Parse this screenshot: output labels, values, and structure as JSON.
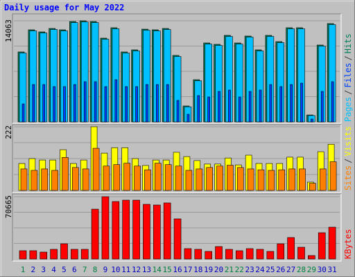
{
  "chart_data": [
    {
      "type": "bar",
      "title": "Daily usage for May 2022",
      "legend_separator": "/",
      "ylim": [
        0,
        14063
      ],
      "yticks": [
        14063
      ],
      "series": [
        {
          "name": "Pages",
          "color": "#00c0ff",
          "values": [
            9580,
            12660,
            12370,
            12850,
            12660,
            13810,
            13910,
            13810,
            11500,
            12950,
            9580,
            9870,
            12750,
            12660,
            12850,
            9100,
            2100,
            5720,
            10830,
            10640,
            11890,
            10830,
            11790,
            9870,
            11890,
            11020,
            12950,
            12950,
            880,
            10540,
            13530
          ]
        },
        {
          "name": "Files",
          "color": "#0040ff",
          "values": [
            2500,
            5200,
            5200,
            4910,
            4910,
            5200,
            5590,
            5590,
            4910,
            5870,
            4910,
            4910,
            5200,
            5200,
            5200,
            2990,
            1060,
            3660,
            3470,
            4240,
            4430,
            3470,
            4240,
            4430,
            5200,
            4910,
            5200,
            5390,
            390,
            4240,
            5590
          ]
        },
        {
          "name": "Hits",
          "color": "#00805c",
          "values": [
            9730,
            12810,
            12520,
            13000,
            12810,
            13960,
            14063,
            13960,
            11650,
            13100,
            9730,
            10020,
            12900,
            12810,
            13000,
            9250,
            2215,
            5870,
            10980,
            10790,
            12040,
            10980,
            11940,
            10020,
            12040,
            11170,
            13100,
            13100,
            960,
            10690,
            13680
          ]
        }
      ]
    },
    {
      "type": "bar",
      "legend_separator": "/",
      "ylim": [
        0,
        222
      ],
      "yticks": [
        222
      ],
      "series": [
        {
          "name": "Sites",
          "color": "#ff8000",
          "values": [
            75,
            70,
            75,
            70,
            115,
            80,
            75,
            147,
            85,
            90,
            95,
            85,
            72,
            95,
            90,
            85,
            70,
            75,
            80,
            85,
            88,
            80,
            75,
            72,
            70,
            72,
            75,
            75,
            25,
            75,
            100
          ]
        },
        {
          "name": "Visits",
          "color": "#ffff00",
          "values": [
            94,
            111,
            106,
            106,
            142,
            94,
            106,
            222,
            130,
            149,
            149,
            111,
            87,
            106,
            106,
            133,
            118,
            104,
            92,
            92,
            113,
            89,
            123,
            94,
            94,
            94,
            116,
            116,
            29,
            135,
            161
          ]
        }
      ]
    },
    {
      "type": "bar",
      "ylim": [
        0,
        70665
      ],
      "yticks": [
        70665
      ],
      "series": [
        {
          "name": "KBytes",
          "color": "#ff0000",
          "values": [
            9420,
            9420,
            7850,
            10990,
            17270,
            10990,
            10990,
            56520,
            70665,
            65160,
            66730,
            66730,
            62020,
            61230,
            63590,
            45530,
            11780,
            10990,
            8640,
            14130,
            10990,
            9420,
            11780,
            10990,
            8640,
            17270,
            24340,
            13350,
            3930,
            29830,
            36110
          ]
        }
      ],
      "categories": [
        "1",
        "2",
        "3",
        "4",
        "5",
        "6",
        "7",
        "8",
        "9",
        "10",
        "11",
        "12",
        "13",
        "14",
        "15",
        "16",
        "17",
        "18",
        "19",
        "20",
        "21",
        "22",
        "23",
        "24",
        "25",
        "26",
        "27",
        "28",
        "29",
        "30",
        "31"
      ],
      "category_colors": [
        "#008040",
        "#0000c0",
        "#0000c0",
        "#0000c0",
        "#0000c0",
        "#0000c0",
        "#008040",
        "#008040",
        "#0000c0",
        "#0000c0",
        "#0000c0",
        "#0000c0",
        "#0000c0",
        "#008040",
        "#008040",
        "#0000c0",
        "#0000c0",
        "#0000c0",
        "#0000c0",
        "#0000c0",
        "#008040",
        "#008040",
        "#0000c0",
        "#0000c0",
        "#0000c0",
        "#0000c0",
        "#0000c0",
        "#008040",
        "#008040",
        "#0000c0",
        "#0000c0"
      ]
    }
  ]
}
